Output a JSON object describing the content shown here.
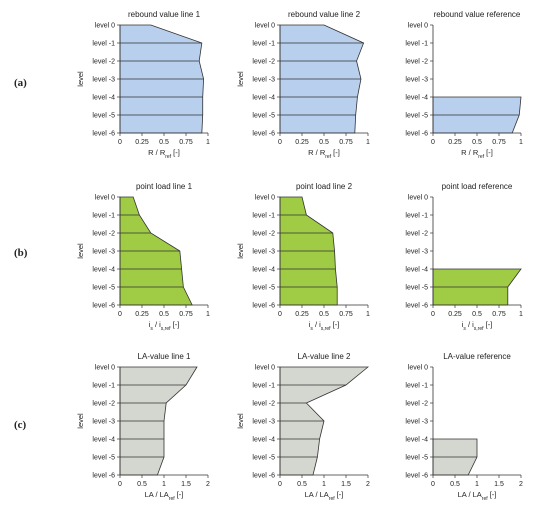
{
  "rows": [
    {
      "label": "(a)",
      "fill": "#b8cfed"
    },
    {
      "label": "(b)",
      "fill": "#a0cb45"
    },
    {
      "label": "(c)",
      "fill": "#d4d6d0"
    }
  ],
  "chart_data": [
    {
      "type": "area",
      "title": "rebound value line 1",
      "xlabel": "R / R",
      "xlabel_sub": "ref",
      "xlabel_unit": " [-]",
      "ylabel": "level",
      "xlim": [
        0,
        1
      ],
      "xticks": [
        "0",
        "0.25",
        "0.5",
        "0.75",
        "1"
      ],
      "levels": [
        "level 0",
        "level -1",
        "level -2",
        "level -3",
        "level -4",
        "level -5",
        "level -6"
      ],
      "values": [
        0.35,
        0.93,
        0.9,
        0.95,
        0.94,
        0.94,
        0.93
      ],
      "start_level": 0,
      "row": 0,
      "col": 0
    },
    {
      "type": "area",
      "title": "rebound value line 2",
      "xlabel": "R / R",
      "xlabel_sub": "ref",
      "xlabel_unit": " [-]",
      "ylabel": "level",
      "xlim": [
        0,
        1
      ],
      "xticks": [
        "0",
        "0.25",
        "0.5",
        "0.75",
        "1"
      ],
      "levels": [
        "level 0",
        "level -1",
        "level -2",
        "level -3",
        "level -4",
        "level -5",
        "level -6"
      ],
      "values": [
        0.5,
        0.95,
        0.87,
        0.92,
        0.88,
        0.86,
        0.85
      ],
      "start_level": 0,
      "row": 0,
      "col": 1
    },
    {
      "type": "area",
      "title": "rebound value reference",
      "xlabel": "R / R",
      "xlabel_sub": "ref",
      "xlabel_unit": " [-]",
      "ylabel": "",
      "xlim": [
        0,
        1
      ],
      "xticks": [
        "0",
        "0.25",
        "0.5",
        "0.75",
        "1"
      ],
      "levels": [
        "level 0",
        "level -1",
        "level -2",
        "level -3",
        "level -4",
        "level -5",
        "level -6"
      ],
      "values": [
        1.0,
        0.98,
        0.9
      ],
      "start_level": 4,
      "row": 0,
      "col": 2
    },
    {
      "type": "area",
      "title": "point load line 1",
      "xlabel": "i / i",
      "xlabel_sub1": "s",
      "xlabel_sub": "s,ref",
      "xlabel_unit": " [-]",
      "ylabel": "level",
      "xlim": [
        0,
        1
      ],
      "xticks": [
        "0",
        "0.25",
        "0.5",
        "0.75",
        "1"
      ],
      "levels": [
        "level 0",
        "level -1",
        "level -2",
        "level -3",
        "level -4",
        "level -5",
        "level -6"
      ],
      "values": [
        0.15,
        0.22,
        0.35,
        0.68,
        0.7,
        0.72,
        0.82
      ],
      "start_level": 0,
      "row": 1,
      "col": 0
    },
    {
      "type": "area",
      "title": "point load line 2",
      "xlabel": "i / i",
      "xlabel_sub1": "s",
      "xlabel_sub": "s,ref",
      "xlabel_unit": " [-]",
      "ylabel": "level",
      "xlim": [
        0,
        1
      ],
      "xticks": [
        "0",
        "0.25",
        "0.5",
        "0.75",
        "1"
      ],
      "levels": [
        "level 0",
        "level -1",
        "level -2",
        "level -3",
        "level -4",
        "level -5",
        "level -6"
      ],
      "values": [
        0.25,
        0.3,
        0.6,
        0.62,
        0.63,
        0.65,
        0.65
      ],
      "start_level": 0,
      "row": 1,
      "col": 1
    },
    {
      "type": "area",
      "title": "point load reference",
      "xlabel": "i / i",
      "xlabel_sub1": "s",
      "xlabel_sub": "s,ref",
      "xlabel_unit": " [-]",
      "ylabel": "",
      "xlim": [
        0,
        1
      ],
      "xticks": [
        "0",
        "0.25",
        "0.5",
        "0.75",
        "1"
      ],
      "levels": [
        "level 0",
        "level -1",
        "level -2",
        "level -3",
        "level -4",
        "level -5",
        "level -6"
      ],
      "values": [
        1.0,
        0.85,
        0.85
      ],
      "start_level": 4,
      "row": 1,
      "col": 2
    },
    {
      "type": "area",
      "title": "LA-value line 1",
      "xlabel": "LA / LA",
      "xlabel_sub": "ref",
      "xlabel_unit": " [-]",
      "ylabel": "level",
      "xlim": [
        0,
        2
      ],
      "xticks": [
        "0",
        "0.5",
        "1",
        "1.5",
        "2"
      ],
      "levels": [
        "level 0",
        "level -1",
        "level -2",
        "level -3",
        "level -4",
        "level -5",
        "level -6"
      ],
      "values": [
        1.75,
        1.5,
        1.05,
        1.0,
        1.0,
        1.0,
        0.85
      ],
      "start_level": 0,
      "row": 2,
      "col": 0
    },
    {
      "type": "area",
      "title": "LA-value line 2",
      "xlabel": "LA / LA",
      "xlabel_sub": "ref",
      "xlabel_unit": " [-]",
      "ylabel": "level",
      "xlim": [
        0,
        2
      ],
      "xticks": [
        "0",
        "0.5",
        "1",
        "1.5",
        "2"
      ],
      "levels": [
        "level 0",
        "level -1",
        "level -2",
        "level -3",
        "level -4",
        "level -5",
        "level -6"
      ],
      "values": [
        2.0,
        1.5,
        0.6,
        1.0,
        0.9,
        0.85,
        0.75
      ],
      "start_level": 0,
      "row": 2,
      "col": 1
    },
    {
      "type": "area",
      "title": "LA-value reference",
      "xlabel": "LA / LA",
      "xlabel_sub": "ref",
      "xlabel_unit": " [-]",
      "ylabel": "",
      "xlim": [
        0,
        2
      ],
      "xticks": [
        "0",
        "0.5",
        "1",
        "1.5",
        "2"
      ],
      "levels": [
        "level 0",
        "level -1",
        "level -2",
        "level -3",
        "level -4",
        "level -5",
        "level -6"
      ],
      "values": [
        1.0,
        1.0,
        0.8
      ],
      "start_level": 4,
      "row": 2,
      "col": 2
    }
  ]
}
